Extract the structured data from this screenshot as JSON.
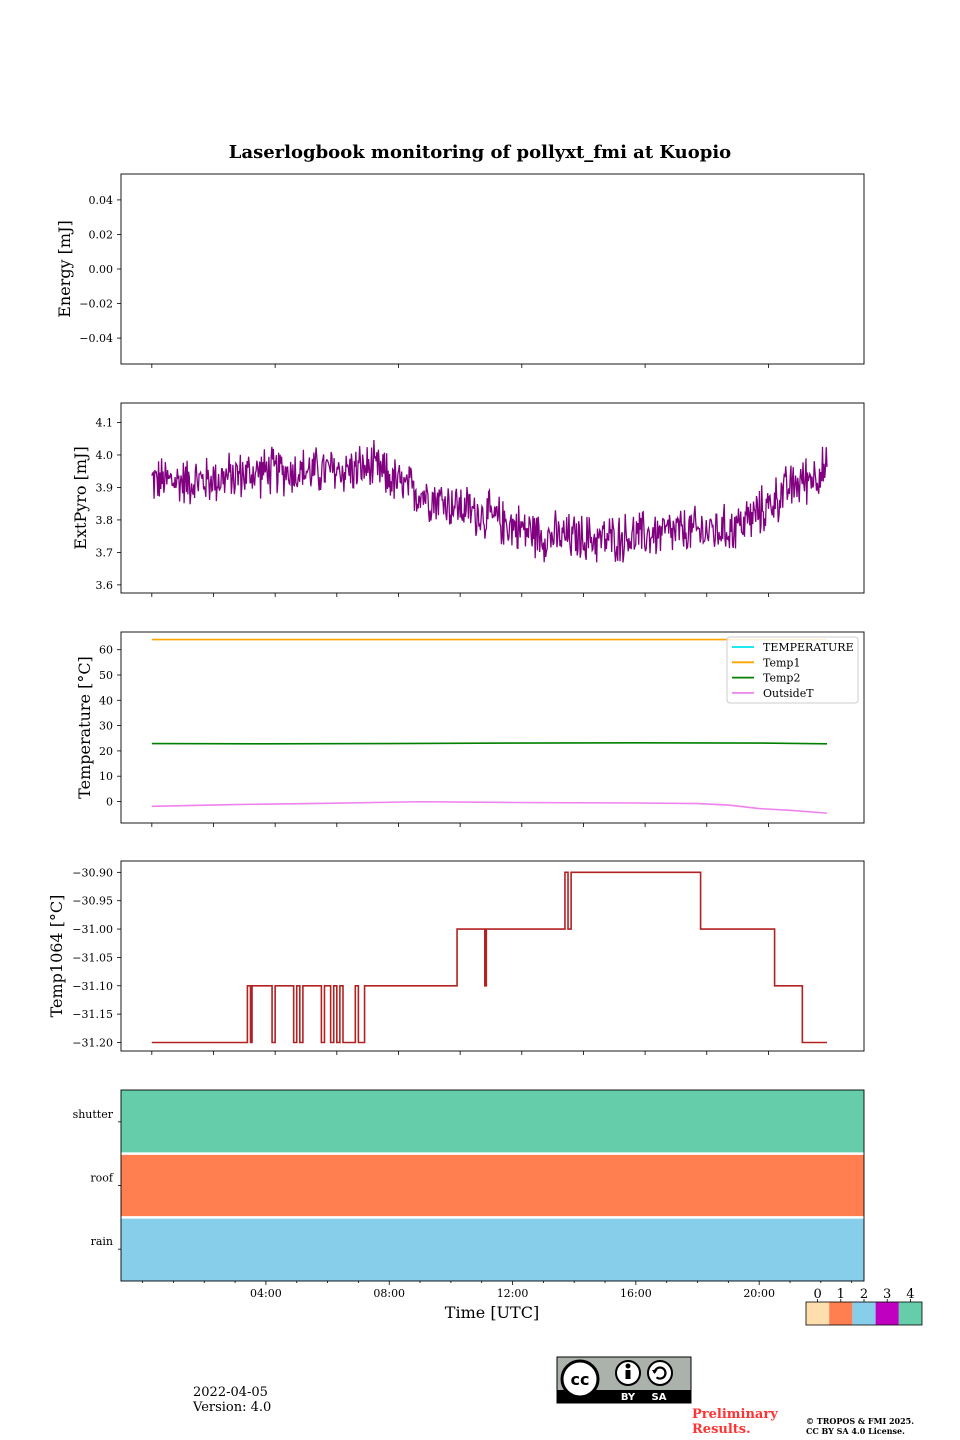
{
  "chart_data": {
    "title": "Laserlogbook monitoring of pollyxt_fmi at Kuopio",
    "type": "line",
    "x_unit": "hours UTC",
    "x_range": [
      -0.7,
      23.4
    ],
    "x_ticks": [
      {
        "value": 4,
        "label": "04:00"
      },
      {
        "value": 8,
        "label": "08:00"
      },
      {
        "value": 12,
        "label": "12:00"
      },
      {
        "value": 16,
        "label": "16:00"
      },
      {
        "value": 20,
        "label": "20:00"
      }
    ],
    "xlabel": "Time [UTC]",
    "panels": [
      {
        "name": "energy",
        "ylabel": "Energy [mJ]",
        "ylim": [
          -0.055,
          0.055
        ],
        "yticks": [
          0.04,
          0.02,
          0.0,
          -0.02,
          -0.04
        ],
        "ytick_labels": [
          "0.04",
          "0.02",
          "0.00",
          "−0.02",
          "−0.04"
        ],
        "series": []
      },
      {
        "name": "extpyro",
        "ylabel": "ExtPyro [mJ]",
        "ylim": [
          3.575,
          4.16
        ],
        "yticks": [
          4.1,
          4.0,
          3.9,
          3.8,
          3.7,
          3.6
        ],
        "ytick_labels": [
          "4.1",
          "4.0",
          "3.9",
          "3.8",
          "3.7",
          "3.6"
        ],
        "series": [
          {
            "name": "ExtPyro",
            "color": "#800080",
            "noise": 0.09,
            "x": [
              0.3,
              2,
              4,
              6,
              7.5,
              8.5,
              10,
              11.5,
              13,
              15,
              17,
              19,
              20,
              21,
              22,
              22.2
            ],
            "y": [
              3.92,
              3.92,
              3.95,
              3.95,
              3.96,
              3.9,
              3.85,
              3.8,
              3.75,
              3.74,
              3.76,
              3.77,
              3.82,
              3.9,
              3.95,
              3.95
            ]
          }
        ]
      },
      {
        "name": "temperature",
        "ylabel": "Temperature [°C]",
        "ylim": [
          -8.5,
          67
        ],
        "yticks": [
          60,
          50,
          40,
          30,
          20,
          10,
          0
        ],
        "ytick_labels": [
          "60",
          "50",
          "40",
          "30",
          "20",
          "10",
          "0"
        ],
        "legend": [
          "TEMPERATURE",
          "Temp1",
          "Temp2",
          "OutsideT"
        ],
        "legend_colors": [
          "#00e5ee",
          "#ffa500",
          "#008000",
          "#ee82ee"
        ],
        "legend_loc": "top-right",
        "series": [
          {
            "name": "TEMPERATURE",
            "color": "#00e5ee",
            "x": [],
            "y": []
          },
          {
            "name": "Temp1",
            "color": "#ffa500",
            "x": [
              0.3,
              22.2
            ],
            "y": [
              64,
              64
            ]
          },
          {
            "name": "Temp2",
            "color": "#008000",
            "x": [
              0.3,
              4,
              8,
              12,
              16,
              20,
              22.2
            ],
            "y": [
              22.9,
              22.8,
              22.9,
              23.1,
              23.2,
              23.1,
              22.8
            ]
          },
          {
            "name": "OutsideT",
            "color": "#ee82ee",
            "x": [
              0.3,
              3,
              6,
              8,
              9,
              12,
              16,
              18,
              19,
              20,
              21,
              22.2
            ],
            "y": [
              -1.9,
              -1.2,
              -0.7,
              -0.3,
              -0.1,
              -0.4,
              -0.6,
              -0.8,
              -1.4,
              -2.8,
              -3.5,
              -4.6
            ]
          }
        ]
      },
      {
        "name": "temp1064",
        "ylabel": "Temp1064 [°C]",
        "ylim": [
          -31.215,
          -30.88
        ],
        "yticks": [
          -30.9,
          -30.95,
          -31.0,
          -31.05,
          -31.1,
          -31.15,
          -31.2
        ],
        "ytick_labels": [
          "−30.90",
          "−30.95",
          "−31.00",
          "−31.05",
          "−31.10",
          "−31.15",
          "−31.20"
        ],
        "series": [
          {
            "name": "Temp1064",
            "color": "#b22222",
            "x": [
              0.3,
              3.4,
              3.4,
              3.5,
              3.5,
              3.55,
              3.55,
              4.2,
              4.2,
              4.3,
              4.3,
              4.9,
              4.9,
              5.0,
              5.0,
              5.1,
              5.1,
              5.2,
              5.2,
              5.8,
              5.8,
              5.9,
              5.9,
              6.1,
              6.1,
              6.2,
              6.2,
              6.3,
              6.3,
              6.4,
              6.4,
              6.5,
              6.5,
              6.9,
              6.9,
              7.0,
              7.0,
              7.2,
              7.2,
              7.3,
              7.3,
              10.2,
              10.2,
              11.1,
              11.1,
              11.15,
              11.15,
              13.7,
              13.7,
              13.8,
              13.8,
              13.9,
              13.9,
              18.1,
              18.1,
              20.5,
              20.5,
              20.55,
              20.55,
              21.4,
              21.4,
              21.5,
              21.5,
              22.2
            ],
            "y": [
              -31.2,
              -31.2,
              -31.1,
              -31.1,
              -31.2,
              -31.2,
              -31.1,
              -31.1,
              -31.2,
              -31.2,
              -31.1,
              -31.1,
              -31.2,
              -31.2,
              -31.1,
              -31.1,
              -31.2,
              -31.2,
              -31.1,
              -31.1,
              -31.2,
              -31.2,
              -31.1,
              -31.1,
              -31.2,
              -31.2,
              -31.1,
              -31.1,
              -31.2,
              -31.2,
              -31.1,
              -31.1,
              -31.2,
              -31.2,
              -31.1,
              -31.1,
              -31.2,
              -31.2,
              -31.1,
              -31.1,
              -31.1,
              -31.1,
              -31.0,
              -31.0,
              -31.1,
              -31.1,
              -31.0,
              -31.0,
              -30.9,
              -30.9,
              -31.0,
              -31.0,
              -30.9,
              -30.9,
              -31.0,
              -31.0,
              -31.1,
              -31.1,
              -31.1,
              -31.1,
              -31.2,
              -31.2,
              -31.2,
              -31.2
            ]
          }
        ]
      },
      {
        "name": "status",
        "type": "status-bands",
        "bands": [
          {
            "label": "shutter",
            "status": 4
          },
          {
            "label": "roof",
            "status": 1
          },
          {
            "label": "rain",
            "status": 2
          }
        ]
      }
    ],
    "colorbar": {
      "labels": [
        "0",
        "1",
        "2",
        "3",
        "4"
      ],
      "colors": [
        "#ffdead",
        "#ff7f50",
        "#87ceeb",
        "#c000c0",
        "#66cdaa"
      ]
    }
  },
  "footer": {
    "date": "2022-04-05",
    "version": "Version: 4.0",
    "preliminary_line1": "Preliminary",
    "preliminary_line2": "Results.",
    "copyright_line1": "© TROPOS & FMI 2025.",
    "copyright_line2": "CC BY SA 4.0 License.",
    "cc_by": "BY",
    "cc_sa": "SA",
    "cc_logo": "cc"
  }
}
